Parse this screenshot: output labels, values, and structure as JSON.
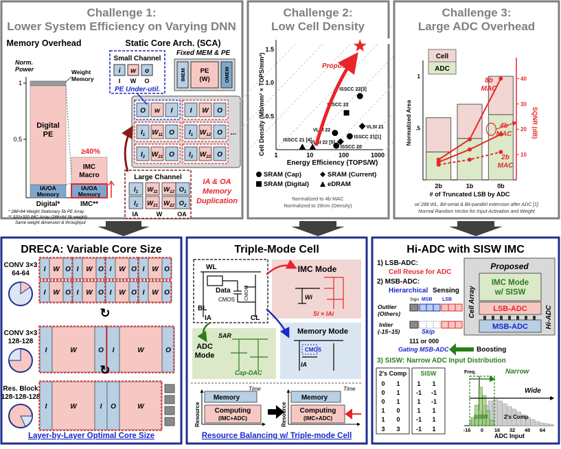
{
  "colors": {
    "top_border": "#7f7f7f",
    "bottom_border": "#1f2f8f",
    "header_gray": "#808080",
    "header_blue": "#1b2d8e",
    "pink": "#f7c8c3",
    "pink_dark": "#e8a39a",
    "blue_light": "#b8cfe4",
    "blue_mid": "#7ea7cc",
    "green_light": "#dbe9c8",
    "red": "#e8262a",
    "dark_red": "#8b1a1a",
    "blue_text": "#1a27c9",
    "green_text": "#2a7d1c",
    "gray_panel": "#d9d9d9"
  },
  "challenge1": {
    "title": "Challenge 1:",
    "subtitle": "Lower System Efficiency on Varying DNN",
    "memory_overhead": "Memory Overhead",
    "sca": "Static Core Arch. (SCA)",
    "norm_power_1": "Norm.",
    "norm_power_2": "Power",
    "tick_1": "1",
    "tick_05": "0.5",
    "weight_memory_1": "Weight",
    "weight_memory_2": "Memory",
    "digital_pe_1": "Digital",
    "digital_pe_2": "PE",
    "iaoa_1": "IA/OA",
    "iaoa_2": "Memory",
    "imc_macro_1": "IMC",
    "imc_macro_2": "Macro",
    "ge40": "≥40%",
    "x_digital": "Digital*",
    "x_imc": "IMC**",
    "note1": "* 288×64 Weight Stationary 5b PE Array",
    "note2": "** 320×320 IMC Array (288×64 5b weight)",
    "note3": "Same weight dimension & throughput",
    "small_channel": "Small Channel",
    "fixed_mem_pe": "Fixed MEM & PE",
    "small_labels": [
      "I",
      "W",
      "O"
    ],
    "small_cells": [
      "i",
      "w",
      "o"
    ],
    "under_util": "PE Under-util.",
    "imem": "IMEM",
    "pe_w_1": "PE",
    "pe_w_2": "(W)",
    "omem": "OMEM",
    "large_channel": "Large Channel",
    "large_cells": [
      "I1",
      "W11",
      "W12",
      "O1",
      "I2",
      "W21",
      "W22",
      "O2"
    ],
    "large_labels": [
      "IA",
      "W",
      "OA"
    ],
    "dup_1": "IA & OA",
    "dup_2": "Memory",
    "dup_3": "Duplication",
    "grid_cells": [
      "O",
      "w",
      "I",
      "I",
      "W",
      "O",
      "I1",
      "W11",
      "O",
      "I1",
      "W12",
      "O",
      "I2",
      "W21",
      "O",
      "I2",
      "W22",
      "O"
    ],
    "ellipsis": "..."
  },
  "challenge2": {
    "title": "Challenge 2:",
    "subtitle": "Low Cell Density",
    "ylabel": "Cell Density (Mb/mm² × TOPS/mm²)",
    "xlabel": "Energy Efficiency (TOPS/W)",
    "proposed": "Proposed",
    "legend": [
      "SRAM (Cap)",
      "SRAM (Current)",
      "SRAM (Digital)",
      "eDRAM"
    ],
    "note1": "Normalized to 4b MAC",
    "note2": "Normalized to 28nm (Density)"
  },
  "chart_data": [
    {
      "type": "scatter",
      "title": "Low Cell Density",
      "xlabel": "Energy Efficiency (TOPS/W)",
      "ylabel": "Cell Density (Mb/mm² × TOPS/mm²)",
      "x_scale": "log",
      "xlim": [
        1,
        1000
      ],
      "ylim": [
        0,
        1.6
      ],
      "x_ticks": [
        "1",
        "10",
        "100",
        "1000"
      ],
      "y_ticks": [
        "0.5",
        "1.0",
        "1.5"
      ],
      "points": [
        {
          "label": "ISSCC 22[3]",
          "x": 300,
          "y": 0.8,
          "marker": "circle"
        },
        {
          "label": "ISSCC 22",
          "x": 120,
          "y": 0.55,
          "marker": "square"
        },
        {
          "label": "VLSI 21",
          "x": 350,
          "y": 0.35,
          "marker": "diamond"
        },
        {
          "label": "VLSI 22",
          "x": 55,
          "y": 0.25,
          "marker": "circle"
        },
        {
          "label": "ISSCC 21[1]",
          "x": 150,
          "y": 0.2,
          "marker": "circle"
        },
        {
          "label": "VLSI 22 [5]",
          "x": 80,
          "y": 0.12,
          "marker": "diamond"
        },
        {
          "label": "ISSCC 20",
          "x": 60,
          "y": 0.06,
          "marker": "circle"
        },
        {
          "label": "ISSCC 21 [4]",
          "x": 6,
          "y": 0.04,
          "marker": "triangle"
        },
        {
          "label": "",
          "x": 12,
          "y": 0.04,
          "marker": "triangle"
        },
        {
          "label": "Proposed",
          "x": 300,
          "y": 1.55,
          "marker": "star"
        }
      ]
    },
    {
      "type": "bar",
      "title": "Large ADC Overhead",
      "xlabel": "# of Truncated LSB by ADC",
      "ylabel": "Normalized Area",
      "y2label": "SQNR (dB)",
      "categories": [
        "2b",
        "1b",
        "0b"
      ],
      "series": [
        {
          "name": "ADC",
          "values": [
            0.27,
            0.4,
            0.63
          ]
        },
        {
          "name": "Cell",
          "values": [
            0.33,
            0.33,
            0.37
          ]
        }
      ],
      "lines": [
        {
          "name": "8b MAC",
          "values": [
            8,
            16,
            40
          ]
        },
        {
          "name": "4b MAC",
          "values": [
            7,
            12,
            18
          ]
        },
        {
          "name": "2b MAC",
          "values": [
            6,
            8,
            11
          ]
        }
      ],
      "ylim": [
        0,
        1.1
      ],
      "y2lim": [
        0,
        45
      ],
      "y_ticks": [
        ".5",
        "1"
      ],
      "y2_ticks": [
        "10",
        "20",
        "30",
        "40"
      ]
    }
  ],
  "challenge3": {
    "title": "Challenge 3:",
    "subtitle": "Large ADC Overhead",
    "legend_cell": "Cell",
    "legend_adc": "ADC",
    "mac8_1": "8b",
    "mac8_2": "MAC",
    "mac4_1": "4b",
    "mac4_2": "MAC",
    "mac2_1": "2b",
    "mac2_2": "MAC",
    "note1": "w/ 288 WL, Bit-serial & Bit-parallel extension after ADC [1]",
    "note2": "Normal Random Vector for Input Activation and Weight"
  },
  "dreca": {
    "title": "DRECA: Variable Core Size",
    "conv1_1": "CONV 3×3",
    "conv1_2": "64-64",
    "conv2_1": "CONV 3×3",
    "conv2_2": "128-128",
    "res_1": "Res. Block",
    "res_2": "128-128-128",
    "row1_cells": [
      "I",
      "W",
      "O",
      "I",
      "W",
      "O",
      "I",
      "W",
      "O",
      "I",
      "W",
      "O"
    ],
    "row2_cells": [
      "I",
      "W",
      "O",
      "I",
      "W",
      "O"
    ],
    "row3_cells": [
      "I",
      "W",
      "I",
      "O",
      "W"
    ],
    "footer": "Layer-by-Layer Optimal Core Size"
  },
  "triple": {
    "title": "Triple-Mode Cell",
    "wl": "WL",
    "data": "Data",
    "cmos": "CMOS",
    "bl": "BL",
    "ia": "IA",
    "cl": "CL",
    "cmom": "CMOM",
    "imc_mode": "IMC Mode",
    "wi": "Wi",
    "si": "Si × IAi",
    "adc_mode_1": "ADC",
    "adc_mode_2": "Mode",
    "sar": "SAR",
    "cap_dac": "Cap-DAC",
    "memory_mode": "Memory Mode",
    "cmos2": "CMOS",
    "time": "Time",
    "memory": "Memory",
    "computing": "Computing",
    "imc_adc": "(IMC+ADC)",
    "resource": "Resource",
    "footer": "Resource Balancing w/ Triple-mode Cell"
  },
  "hiadc": {
    "title": "Hi-ADC with SISW IMC",
    "item1": "1) LSB-ADC:",
    "item1b": "Cell Reuse for ADC",
    "item2": "2) MSB-ADC:",
    "item2b": "Hierarchical",
    "item2c": "Sensing",
    "sign": "Sign",
    "msb": "MSB",
    "lsb": "LSB",
    "outlier_1": "Outlier",
    "outlier_2": "(Others)",
    "inlier_1": "Inlier",
    "inlier_2": "(-15~15)",
    "skip": "Skip",
    "gating_1": "111 or 000",
    "gating_2": "Gating MSB-ADC",
    "proposed": "Proposed",
    "cell_array": "Cell Array",
    "imc_mode_1": "IMC Mode",
    "imc_mode_2": "w/ SISW",
    "lsb_adc": "LSB-ADC",
    "msb_adc": "MSB-ADC",
    "hi_adc": "Hi-ADC",
    "boosting": "Boosting",
    "item3": "3) SISW: Narrow ADC Input Distribution",
    "twos_comp": "2's Comp",
    "sisw": "SISW",
    "comp_bits": [
      "0",
      "1",
      "0",
      "1",
      "0",
      "1",
      "1",
      "0",
      "1",
      "0"
    ],
    "sisw_bits": [
      "1",
      "1",
      "-1",
      "-1",
      "1",
      "-1",
      "1",
      "1",
      "-1",
      "1"
    ],
    "comp_sums": [
      "3",
      "3"
    ],
    "sisw_sums": [
      "-1",
      "1"
    ],
    "freq": "Freq.",
    "narrow": "Narrow",
    "wide": "Wide",
    "sisw_label": "SISW",
    "comp_label": "2's Comp",
    "x_ticks": [
      "-16",
      "0",
      "16",
      "32",
      "48",
      "64"
    ],
    "xlabel": "ADC Input"
  }
}
